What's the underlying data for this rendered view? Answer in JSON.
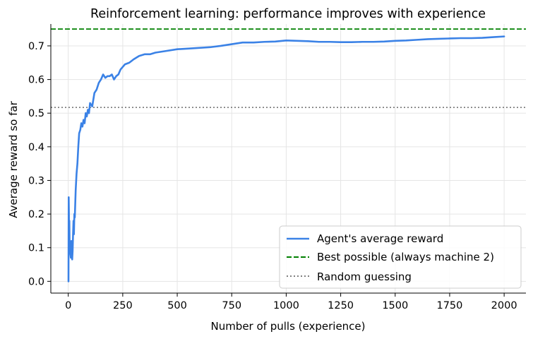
{
  "chart_data": {
    "type": "line",
    "title": "Reinforcement learning: performance improves with experience",
    "xlabel": "Number of pulls (experience)",
    "ylabel": "Average reward so far",
    "xlim": [
      -80,
      2100
    ],
    "ylim": [
      -0.035,
      0.765
    ],
    "xticks": [
      0,
      250,
      500,
      750,
      1000,
      1250,
      1500,
      1750,
      2000
    ],
    "xtick_labels": [
      "0",
      "250",
      "500",
      "750",
      "1000",
      "1250",
      "1500",
      "1750",
      "2000"
    ],
    "yticks": [
      0.0,
      0.1,
      0.2,
      0.3,
      0.4,
      0.5,
      0.6,
      0.7
    ],
    "ytick_labels": [
      "0.0",
      "0.1",
      "0.2",
      "0.3",
      "0.4",
      "0.5",
      "0.6",
      "0.7"
    ],
    "grid": true,
    "legend_position": "lower-right",
    "series": [
      {
        "name": "Agent's average reward",
        "style": "solid",
        "color": "#3b82e6",
        "x": [
          1,
          2,
          3,
          4,
          5,
          6,
          8,
          10,
          12,
          14,
          16,
          18,
          20,
          22,
          24,
          26,
          28,
          30,
          34,
          38,
          42,
          46,
          50,
          55,
          60,
          65,
          70,
          75,
          80,
          85,
          90,
          95,
          100,
          110,
          120,
          130,
          140,
          150,
          160,
          170,
          180,
          190,
          200,
          210,
          220,
          230,
          240,
          260,
          280,
          300,
          325,
          350,
          375,
          400,
          450,
          500,
          550,
          600,
          650,
          700,
          750,
          800,
          850,
          900,
          950,
          1000,
          1050,
          1100,
          1150,
          1200,
          1250,
          1300,
          1350,
          1400,
          1450,
          1500,
          1550,
          1600,
          1650,
          1700,
          1750,
          1800,
          1850,
          1900,
          1950,
          2000
        ],
        "values": [
          0.0,
          0.25,
          0.2,
          0.1,
          0.18,
          0.12,
          0.1,
          0.08,
          0.07,
          0.12,
          0.1,
          0.065,
          0.09,
          0.14,
          0.18,
          0.14,
          0.2,
          0.19,
          0.27,
          0.32,
          0.35,
          0.4,
          0.44,
          0.45,
          0.47,
          0.46,
          0.48,
          0.47,
          0.5,
          0.49,
          0.51,
          0.5,
          0.53,
          0.52,
          0.56,
          0.57,
          0.59,
          0.6,
          0.615,
          0.605,
          0.61,
          0.61,
          0.615,
          0.6,
          0.61,
          0.615,
          0.63,
          0.645,
          0.65,
          0.66,
          0.67,
          0.675,
          0.675,
          0.68,
          0.685,
          0.69,
          0.692,
          0.694,
          0.696,
          0.7,
          0.705,
          0.71,
          0.71,
          0.712,
          0.713,
          0.716,
          0.715,
          0.714,
          0.712,
          0.712,
          0.711,
          0.711,
          0.712,
          0.712,
          0.713,
          0.715,
          0.716,
          0.718,
          0.72,
          0.721,
          0.722,
          0.723,
          0.723,
          0.724,
          0.726,
          0.728
        ]
      },
      {
        "name": "Best possible (always machine 2)",
        "style": "dashed",
        "color": "#008000",
        "y": 0.75
      },
      {
        "name": "Random guessing",
        "style": "dotted",
        "color": "#808080",
        "y": 0.517
      }
    ]
  }
}
